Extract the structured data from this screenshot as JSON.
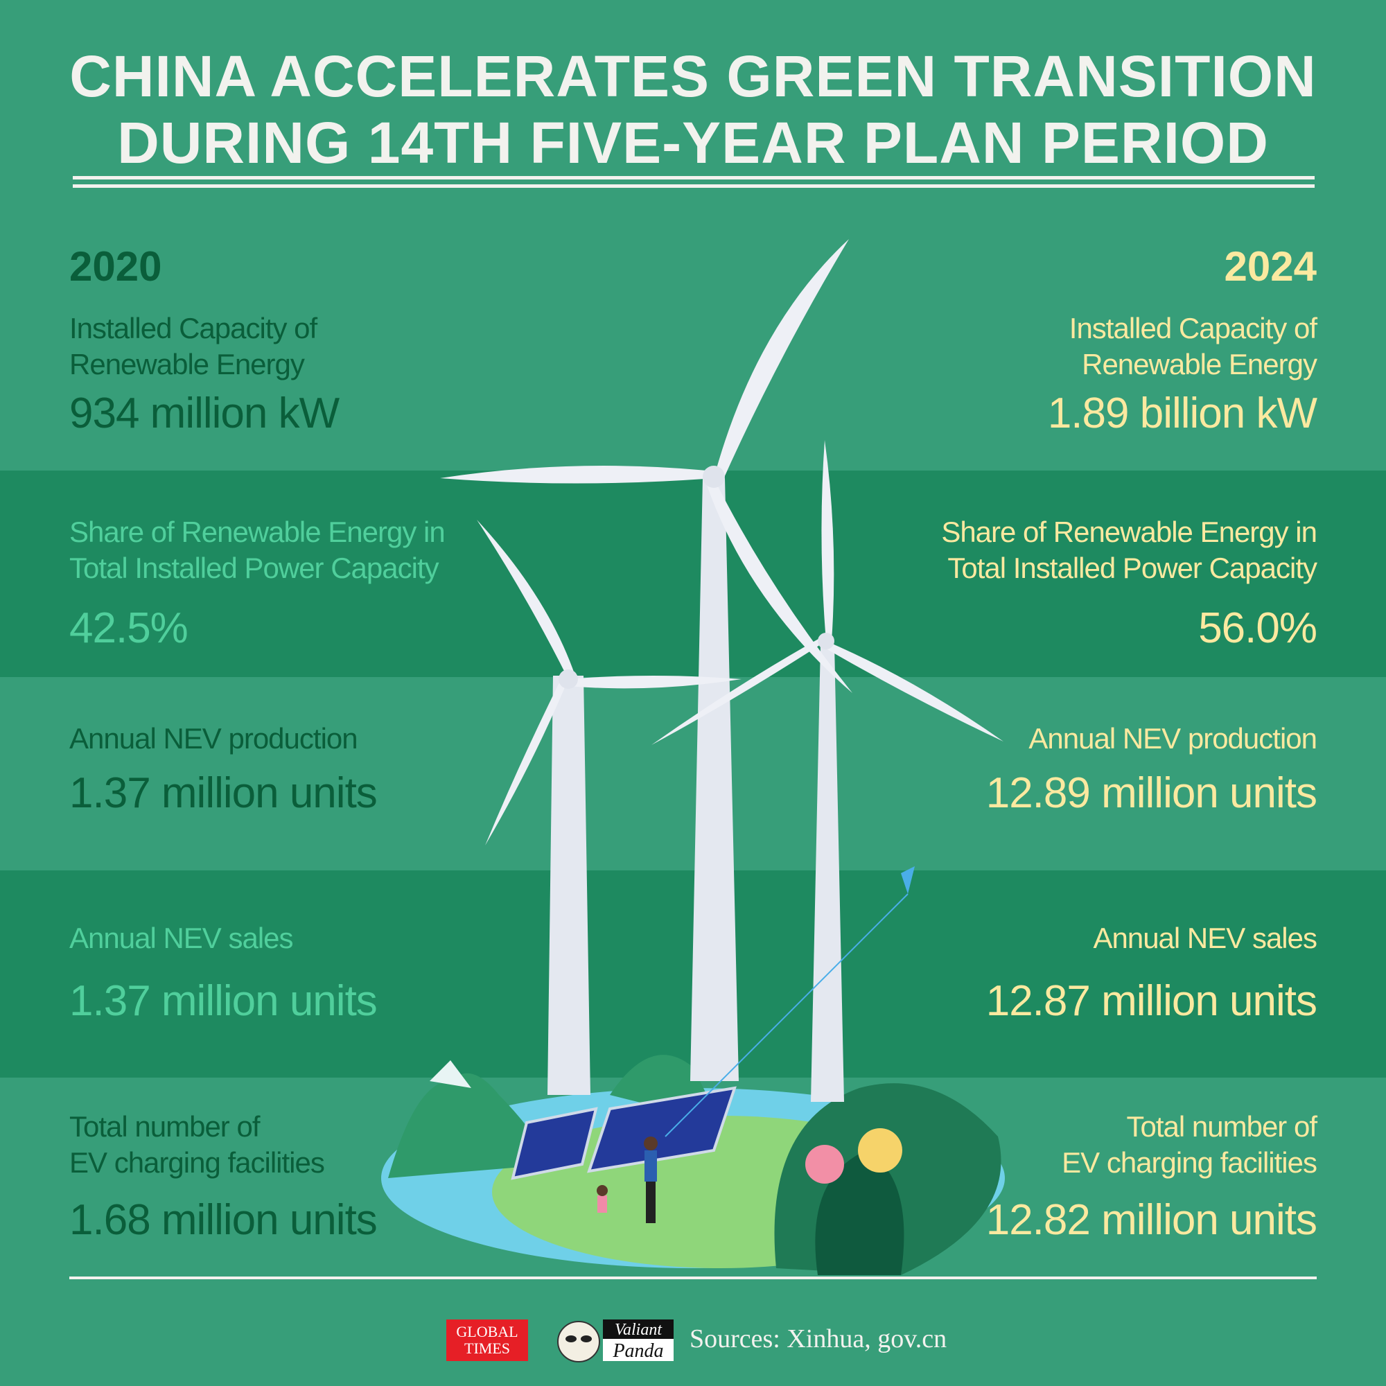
{
  "title": {
    "line1": "CHINA ACCELERATES GREEN TRANSITION",
    "line2": "DURING 14TH FIVE-YEAR PLAN PERIOD"
  },
  "columns": {
    "left": {
      "year": "2020"
    },
    "right": {
      "year": "2024"
    }
  },
  "rows": [
    {
      "label_left": [
        "Installed Capacity of",
        "Renewable Energy"
      ],
      "value_left": "934 million kW",
      "label_right": [
        "Installed Capacity of",
        "Renewable Energy"
      ],
      "value_right": "1.89 billion kW"
    },
    {
      "label_left": [
        "Share of Renewable Energy in",
        "Total Installed Power Capacity"
      ],
      "value_left": "42.5%",
      "label_right": [
        "Share of Renewable Energy in",
        "Total Installed Power Capacity"
      ],
      "value_right": "56.0%"
    },
    {
      "label_left": [
        "Annual NEV production"
      ],
      "value_left": "1.37 million units",
      "label_right": [
        "Annual NEV production"
      ],
      "value_right": "12.89 million units"
    },
    {
      "label_left": [
        "Annual NEV sales"
      ],
      "value_left": "1.37 million units",
      "label_right": [
        "Annual NEV sales"
      ],
      "value_right": "12.87 million units"
    },
    {
      "label_left": [
        "Total number of",
        "EV charging facilities"
      ],
      "value_left": "1.68 million units",
      "label_right": [
        "Total number of",
        "EV charging facilities"
      ],
      "value_right": "12.82 million units"
    }
  ],
  "footer": {
    "logo1": [
      "GLOBAL",
      "TIMES"
    ],
    "logo2": [
      "Valiant",
      "Panda"
    ],
    "sources": "Sources: Xinhua, gov.cn"
  },
  "colors": {
    "bg_light": "#379e79",
    "bg_dark": "#1e8a60",
    "text_dark": "#0a5e3a",
    "text_mint": "#50cf9c",
    "text_yellow": "#fbe9a0",
    "title": "#f2f2ee"
  }
}
